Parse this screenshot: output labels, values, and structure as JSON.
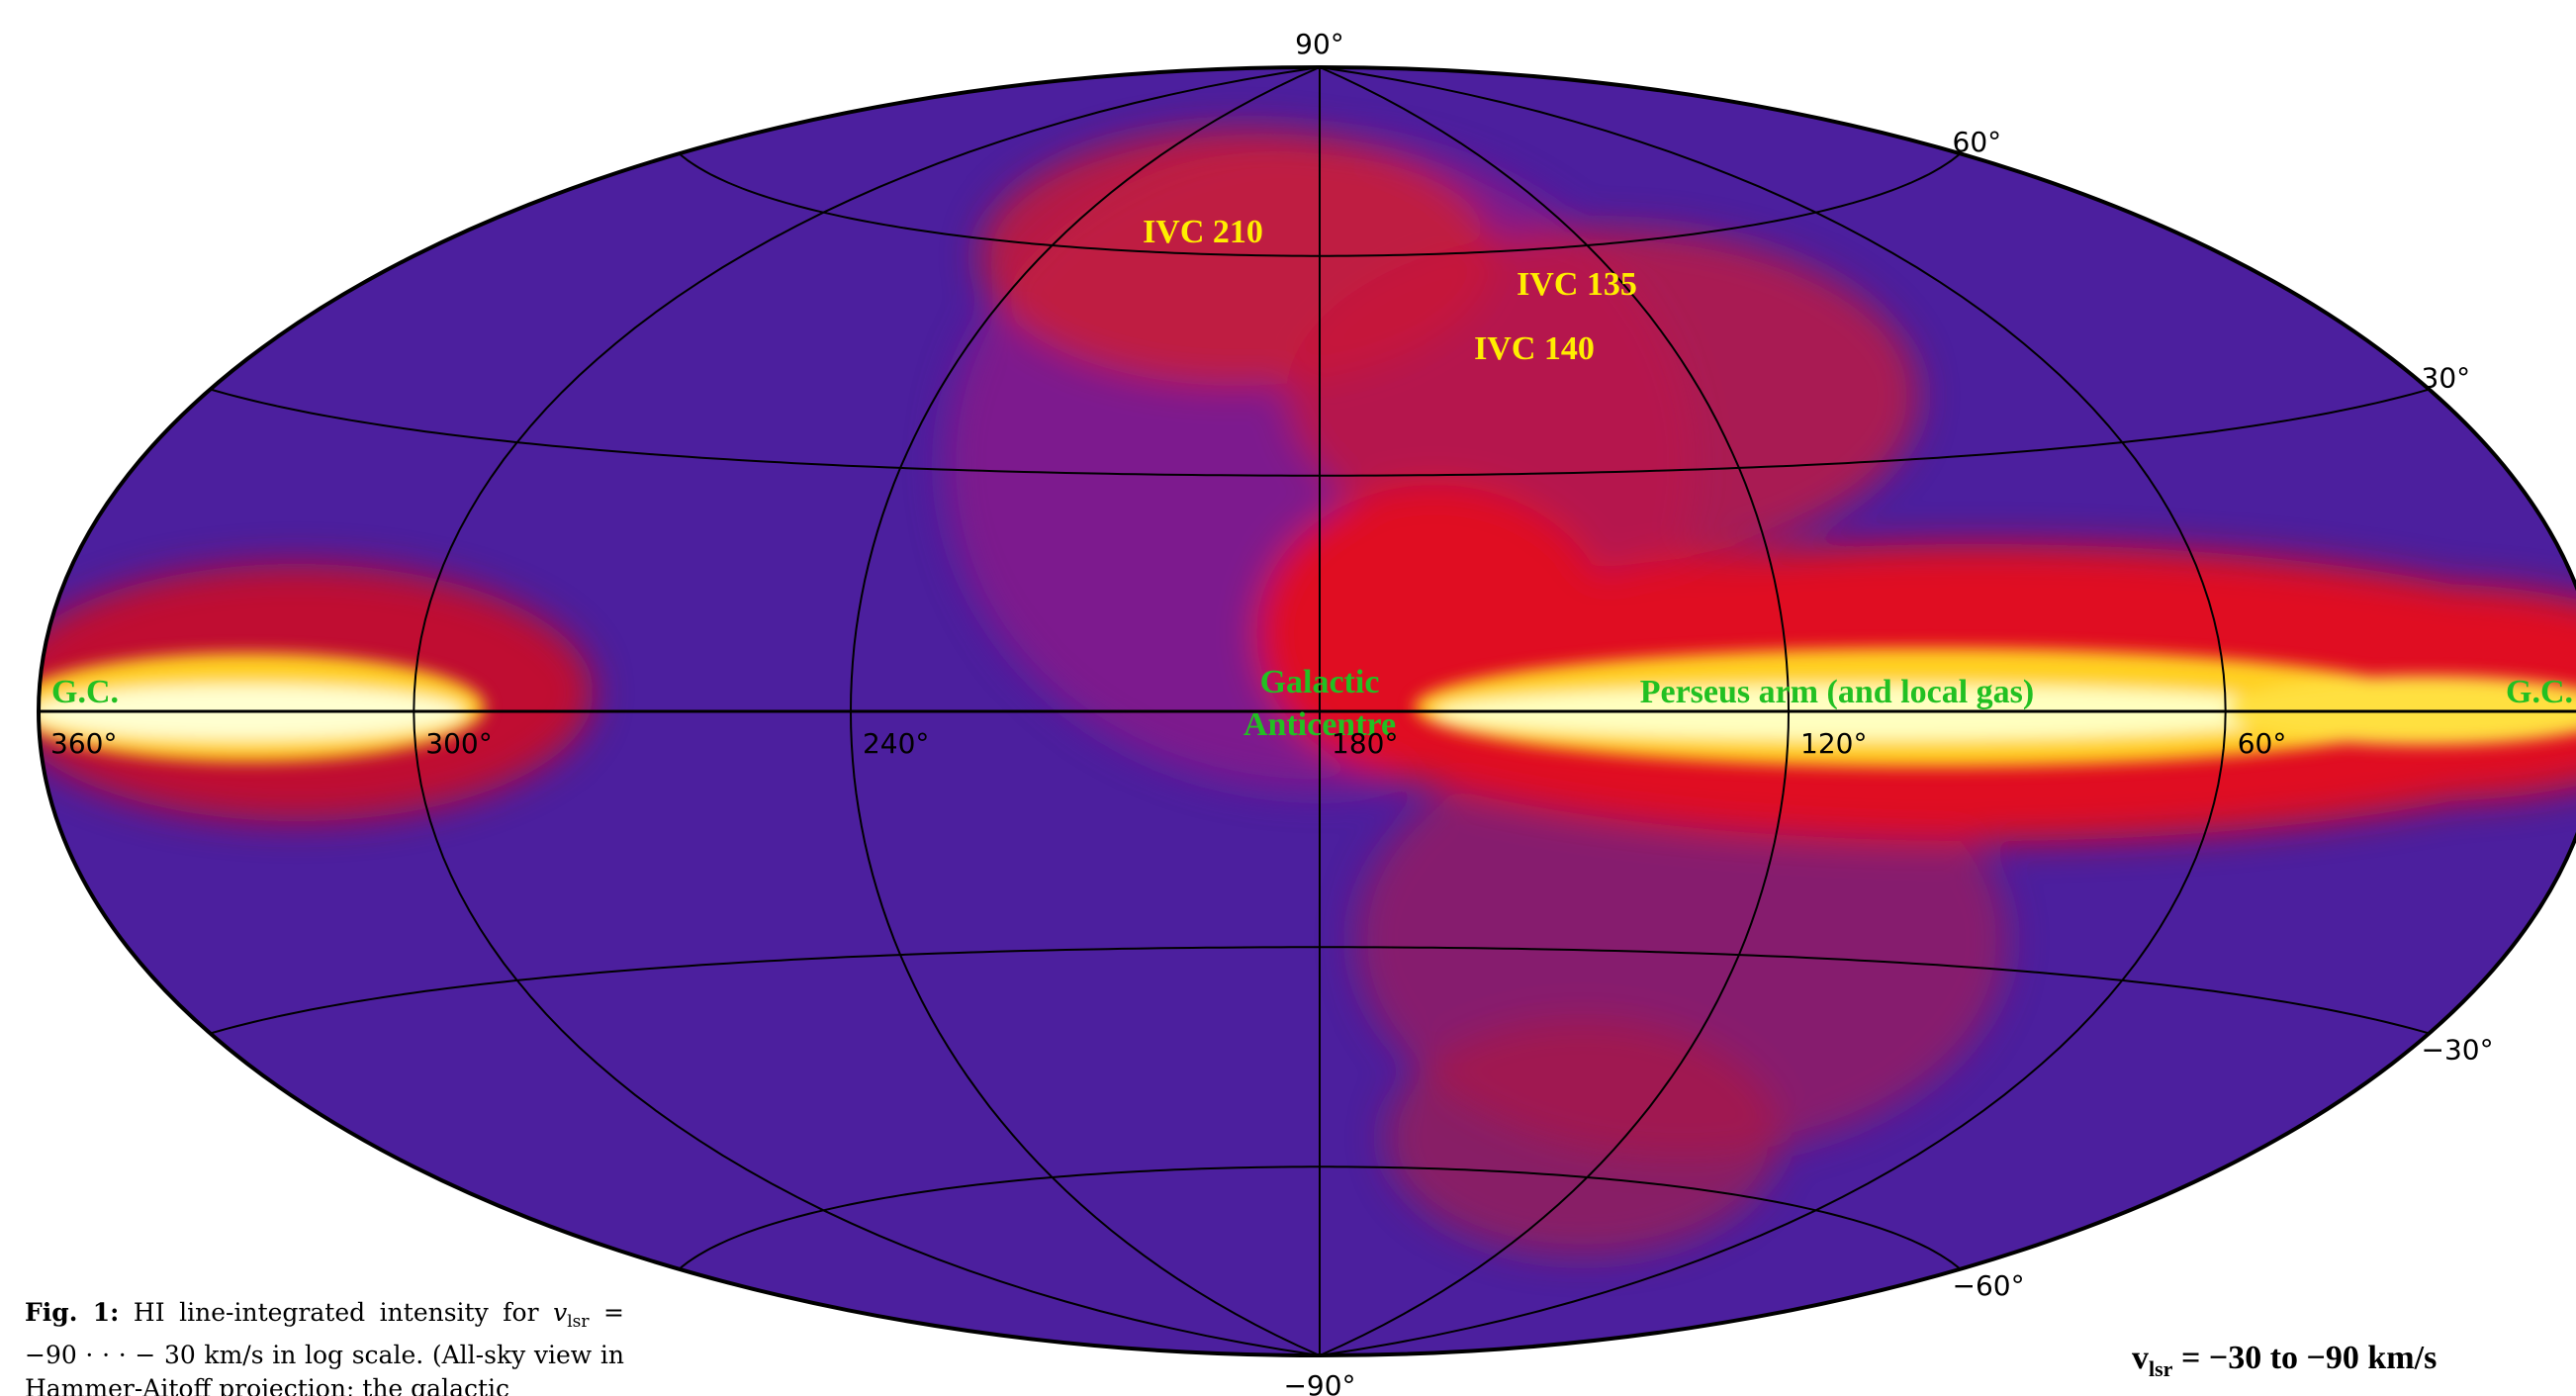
{
  "figure": {
    "latitude_ticks": [
      {
        "value": 90,
        "label": "90°"
      },
      {
        "value": 60,
        "label": "60°"
      },
      {
        "value": 30,
        "label": "30°"
      },
      {
        "value": -30,
        "label": "−30°"
      },
      {
        "value": -60,
        "label": "−60°"
      },
      {
        "value": -90,
        "label": "−90°"
      }
    ],
    "longitude_ticks": [
      {
        "value": 360,
        "label": "360°"
      },
      {
        "value": 300,
        "label": "300°"
      },
      {
        "value": 240,
        "label": "240°"
      },
      {
        "value": 180,
        "label": "180°"
      },
      {
        "value": 120,
        "label": "120°"
      },
      {
        "value": 60,
        "label": "60°"
      }
    ],
    "labels": {
      "gc_left": "G.C.",
      "gc_right": "G.C.",
      "anticentre_1": "Galactic",
      "anticentre_2": "Anticentre",
      "perseus": "Perseus arm (and local gas)",
      "ivc210": "IVC 210",
      "ivc135": "IVC 135",
      "ivc140": "IVC 140"
    },
    "velocity": {
      "v": "v",
      "sub": "lsr",
      "rest": " = −30  to −90 km/s"
    }
  },
  "caption": {
    "label": "Fig. 1:",
    "before": " HI line-integrated intensity for ",
    "v": "v",
    "sub": "lsr",
    "after": " = −90 · · · − 30 km/s in log scale. (All-sky view in Hammer-Aitoff projection; the galactic"
  }
}
